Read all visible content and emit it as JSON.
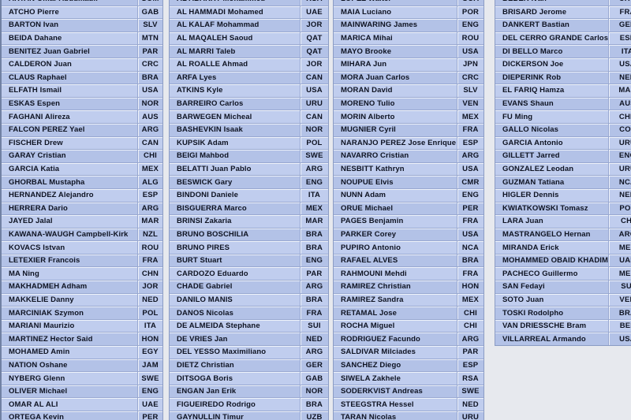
{
  "page": {
    "background": "#e7e9ee"
  },
  "colors": {
    "row_light": "#c0cdee",
    "row_dark": "#b3c2e7",
    "grid_line": "#98a8d1",
    "grid_highlight": "#ffffff",
    "table_border": "#8b9cc4",
    "text": "#0e1322"
  },
  "tables": [
    {
      "id": "officials-list-1",
      "rows": [
        [
          "ARTAN Omar Abdulkadir",
          "SOM"
        ],
        [
          "ATCHO Pierre",
          "GAB"
        ],
        [
          "BARTON Ivan",
          "SLV"
        ],
        [
          "BEIDA Dahane",
          "MTN"
        ],
        [
          "BENITEZ Juan Gabriel",
          "PAR"
        ],
        [
          "CALDERON Juan",
          "CRC"
        ],
        [
          "CLAUS Raphael",
          "BRA"
        ],
        [
          "ELFATH Ismail",
          "USA"
        ],
        [
          "ESKAS Espen",
          "NOR"
        ],
        [
          "FAGHANI Alireza",
          "AUS"
        ],
        [
          "FALCON PEREZ Yael",
          "ARG"
        ],
        [
          "FISCHER Drew",
          "CAN"
        ],
        [
          "GARAY Cristian",
          "CHI"
        ],
        [
          "GARCIA Katia",
          "MEX"
        ],
        [
          "GHORBAL Mustapha",
          "ALG"
        ],
        [
          "HERNANDEZ Alejandro",
          "ESP"
        ],
        [
          "HERRERA Dario",
          "ARG"
        ],
        [
          "JAYED Jalal",
          "MAR"
        ],
        [
          "KAWANA-WAUGH Campbell-Kirk",
          "NZL"
        ],
        [
          "KOVACS Istvan",
          "ROU"
        ],
        [
          "LETEXIER Francois",
          "FRA"
        ],
        [
          "MA Ning",
          "CHN"
        ],
        [
          "MAKHADMEH Adham",
          "JOR"
        ],
        [
          "MAKKELIE Danny",
          "NED"
        ],
        [
          "MARCINIAK Szymon",
          "POL"
        ],
        [
          "MARIANI Maurizio",
          "ITA"
        ],
        [
          "MARTINEZ Hector Said",
          "HON"
        ],
        [
          "MOHAMED Amin",
          "EGY"
        ],
        [
          "NATION Oshane",
          "JAM"
        ],
        [
          "NYBERG Glenn",
          "SWE"
        ],
        [
          "OLIVER Michael",
          "ENG"
        ],
        [
          "OMAR AL ALI",
          "UAE"
        ],
        [
          "ORTEGA Kevin",
          "PER"
        ]
      ]
    },
    {
      "id": "officials-list-2",
      "rows": [
        [
          "AL ABAKRY Mohammed",
          "KSA"
        ],
        [
          "AL HAMMADI Mohamed",
          "UAE"
        ],
        [
          "AL KALAF Mohammad",
          "JOR"
        ],
        [
          "AL MAQALEH Saoud",
          "QAT"
        ],
        [
          "AL MARRI Taleb",
          "QAT"
        ],
        [
          "AL ROALLE Ahmad",
          "JOR"
        ],
        [
          "ARFA Lyes",
          "CAN"
        ],
        [
          "ATKINS Kyle",
          "USA"
        ],
        [
          "BARREIRO Carlos",
          "URU"
        ],
        [
          "BARWEGEN Micheal",
          "CAN"
        ],
        [
          "BASHEVKIN Isaak",
          "NOR"
        ],
        [
          "KUPSIK Adam",
          "POL"
        ],
        [
          "BEIGI Mahbod",
          "SWE"
        ],
        [
          "BELATTI Juan Pablo",
          "ARG"
        ],
        [
          "BESWICK Gary",
          "ENG"
        ],
        [
          "BINDONI Daniele",
          "ITA"
        ],
        [
          "BISGUERRA Marco",
          "MEX"
        ],
        [
          "BRINSI Zakaria",
          "MAR"
        ],
        [
          "BRUNO BOSCHILIA",
          "BRA"
        ],
        [
          "BRUNO PIRES",
          "BRA"
        ],
        [
          "BURT Stuart",
          "ENG"
        ],
        [
          "CARDOZO Eduardo",
          "PAR"
        ],
        [
          "CHADE Gabriel",
          "ARG"
        ],
        [
          "DANILO MANIS",
          "BRA"
        ],
        [
          "DANOS Nicolas",
          "FRA"
        ],
        [
          "DE ALMEIDA Stephane",
          "SUI"
        ],
        [
          "DE VRIES Jan",
          "NED"
        ],
        [
          "DEL YESSO Maximiliano",
          "ARG"
        ],
        [
          "DIETZ Christian",
          "GER"
        ],
        [
          "DITSOGA Boris",
          "GAB"
        ],
        [
          "ENGAN Jan Erik",
          "NOR"
        ],
        [
          "FIGUEIREDO Rodrigo",
          "BRA"
        ],
        [
          "GAYNULLIN Timur",
          "UZB"
        ]
      ]
    },
    {
      "id": "officials-list-3",
      "rows": [
        [
          "LOPEZ Walter",
          "GUA"
        ],
        [
          "MAIA Luciano",
          "POR"
        ],
        [
          "MAINWARING James",
          "ENG"
        ],
        [
          "MARICA Mihai",
          "ROU"
        ],
        [
          "MAYO Brooke",
          "USA"
        ],
        [
          "MIHARA Jun",
          "JPN"
        ],
        [
          "MORA Juan Carlos",
          "CRC"
        ],
        [
          "MORAN David",
          "SLV"
        ],
        [
          "MORENO Tulio",
          "VEN"
        ],
        [
          "MORIN Alberto",
          "MEX"
        ],
        [
          "MUGNIER Cyril",
          "FRA"
        ],
        [
          "NARANJO PEREZ Jose Enrique",
          "ESP"
        ],
        [
          "NAVARRO Cristian",
          "ARG"
        ],
        [
          "NESBITT Kathryn",
          "USA"
        ],
        [
          "NOUPUE Elvis",
          "CMR"
        ],
        [
          "NUNN Adam",
          "ENG"
        ],
        [
          "ORUE Michael",
          "PER"
        ],
        [
          "PAGES Benjamin",
          "FRA"
        ],
        [
          "PARKER Corey",
          "USA"
        ],
        [
          "PUPIRO Antonio",
          "NCA"
        ],
        [
          "RAFAEL ALVES",
          "BRA"
        ],
        [
          "RAHMOUNI Mehdi",
          "FRA"
        ],
        [
          "RAMIREZ Christian",
          "HON"
        ],
        [
          "RAMIREZ Sandra",
          "MEX"
        ],
        [
          "RETAMAL Jose",
          "CHI"
        ],
        [
          "ROCHA Miguel",
          "CHI"
        ],
        [
          "RODRIGUEZ Facundo",
          "ARG"
        ],
        [
          "SALDIVAR Milciades",
          "PAR"
        ],
        [
          "SANCHEZ Diego",
          "ESP"
        ],
        [
          "SIWELA Zakhele",
          "RSA"
        ],
        [
          "SODERKVIST Andreas",
          "SWE"
        ],
        [
          "STEEGSTRA Hessel",
          "NED"
        ],
        [
          "TARAN Nicolas",
          "URU"
        ]
      ]
    },
    {
      "id": "officials-list-4",
      "rows": [
        [
          "BEBEK Ivan",
          "CRO"
        ],
        [
          "BRISARD Jerome",
          "FRA"
        ],
        [
          "DANKERT Bastian",
          "GER"
        ],
        [
          "DEL CERRO GRANDE Carlos",
          "ESP"
        ],
        [
          "DI BELLO Marco",
          "ITA"
        ],
        [
          "DICKERSON Joe",
          "USA"
        ],
        [
          "DIEPERINK Rob",
          "NED"
        ],
        [
          "EL FARIQ Hamza",
          "MAR"
        ],
        [
          "EVANS Shaun",
          "AUS"
        ],
        [
          "FU Ming",
          "CHN"
        ],
        [
          "GALLO Nicolas",
          "COL"
        ],
        [
          "GARCIA Antonio",
          "URU"
        ],
        [
          "GILLETT Jarred",
          "ENG"
        ],
        [
          "GONZALEZ Leodan",
          "URU"
        ],
        [
          "GUZMAN Tatiana",
          "NCA"
        ],
        [
          "HIGLER Dennis",
          "NED"
        ],
        [
          "KWIATKOWSKI Tomasz",
          "POL"
        ],
        [
          "LARA Juan",
          "CHI"
        ],
        [
          "MASTRANGELO Hernan",
          "ARG"
        ],
        [
          "MIRANDA Erick",
          "MEX"
        ],
        [
          "MOHAMMED OBAID KHADIM",
          "UAE"
        ],
        [
          "PACHECO Guillermo",
          "MEX"
        ],
        [
          "SAN Fedayi",
          "SUI"
        ],
        [
          "SOTO Juan",
          "VEN"
        ],
        [
          "TOSKI Rodolpho",
          "BRA"
        ],
        [
          "VAN DRIESSCHE Bram",
          "BEL"
        ],
        [
          "VILLARREAL Armando",
          "USA"
        ]
      ]
    }
  ]
}
